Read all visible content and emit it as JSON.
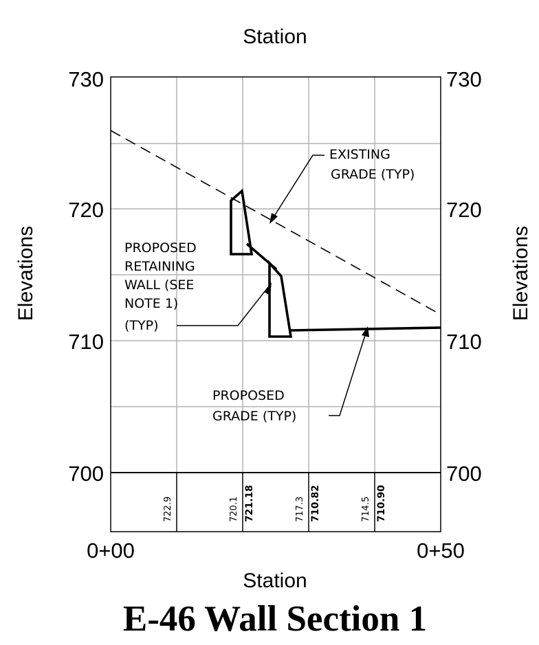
{
  "title": "E-46 Wall Section 1",
  "axis": {
    "top_label": "Station",
    "bottom_label": "Station",
    "left_label": "Elevations",
    "right_label": "Elevations",
    "elevation_ticks": [
      "730",
      "720",
      "710",
      "700"
    ],
    "station_ticks": [
      "0+00",
      "0+50"
    ]
  },
  "annotations": {
    "existing_grade": [
      "EXISTING",
      "GRADE (TYP)"
    ],
    "retaining_wall": [
      "PROPOSED",
      "RETAINING",
      "WALL (SEE",
      "NOTE 1)",
      "(TYP)"
    ],
    "proposed_grade": [
      "PROPOSED",
      "GRADE (TYP)"
    ]
  },
  "elevation_table": [
    {
      "station": 10,
      "existing": "722.9",
      "proposed": ""
    },
    {
      "station": 20,
      "existing": "720.1",
      "proposed": "721.18"
    },
    {
      "station": 30,
      "existing": "717.3",
      "proposed": "710.82"
    },
    {
      "station": 40,
      "existing": "714.5",
      "proposed": "710.90"
    }
  ],
  "colors": {
    "line": "#000000",
    "grid": "#b4b4b4"
  }
}
